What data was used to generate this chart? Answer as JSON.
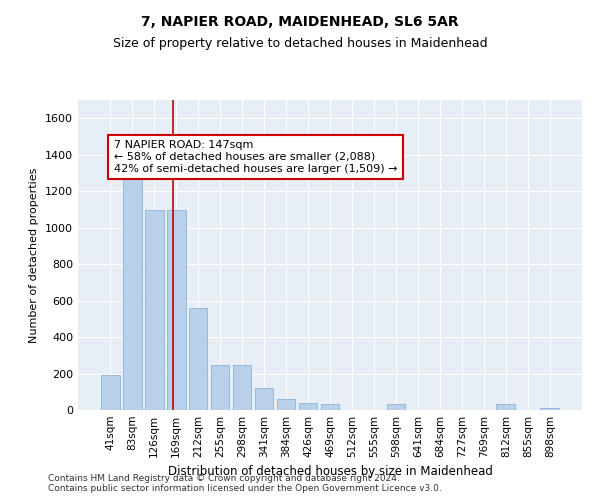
{
  "title1": "7, NAPIER ROAD, MAIDENHEAD, SL6 5AR",
  "title2": "Size of property relative to detached houses in Maidenhead",
  "xlabel": "Distribution of detached houses by size in Maidenhead",
  "ylabel": "Number of detached properties",
  "categories": [
    "41sqm",
    "83sqm",
    "126sqm",
    "169sqm",
    "212sqm",
    "255sqm",
    "298sqm",
    "341sqm",
    "384sqm",
    "426sqm",
    "469sqm",
    "512sqm",
    "555sqm",
    "598sqm",
    "641sqm",
    "684sqm",
    "727sqm",
    "769sqm",
    "812sqm",
    "855sqm",
    "898sqm"
  ],
  "values": [
    190,
    1270,
    1095,
    1095,
    560,
    245,
    245,
    120,
    60,
    40,
    35,
    0,
    0,
    35,
    0,
    0,
    0,
    0,
    35,
    0,
    10
  ],
  "bar_color": "#b8d0ea",
  "bar_edge_color": "#8ab4d8",
  "vline_x": 2.85,
  "vline_color": "#cc0000",
  "annotation_text": "7 NAPIER ROAD: 147sqm\n← 58% of detached houses are smaller (2,088)\n42% of semi-detached houses are larger (1,509) →",
  "annotation_box_color": "white",
  "annotation_box_edge_color": "#cc0000",
  "ylim": [
    0,
    1700
  ],
  "yticks": [
    0,
    200,
    400,
    600,
    800,
    1000,
    1200,
    1400,
    1600
  ],
  "background_color": "#e8eef6",
  "footer1": "Contains HM Land Registry data © Crown copyright and database right 2024.",
  "footer2": "Contains public sector information licensed under the Open Government Licence v3.0.",
  "title1_fontsize": 10,
  "title2_fontsize": 9,
  "annot_fontsize": 8
}
